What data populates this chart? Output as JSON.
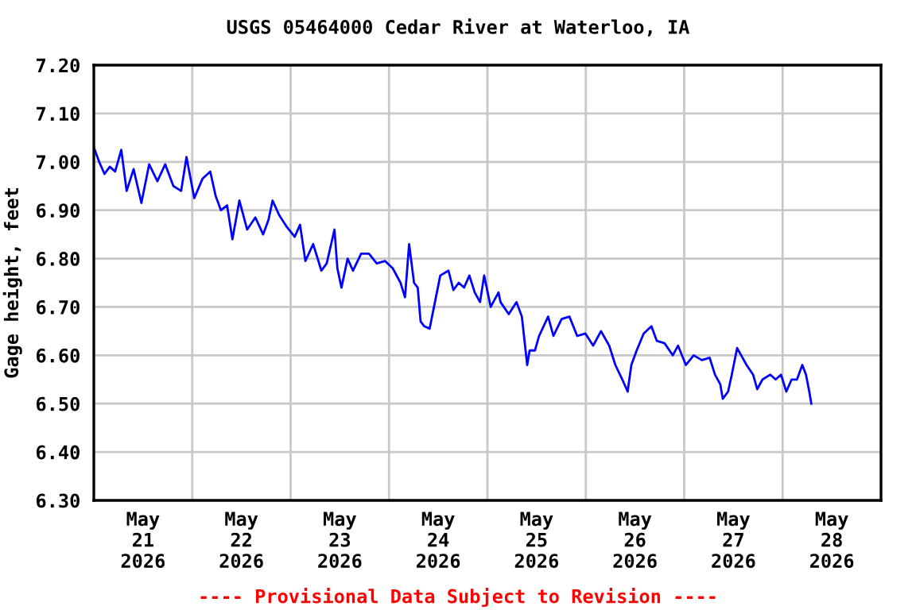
{
  "chart_data": {
    "type": "line",
    "title": "USGS 05464000 Cedar River at Waterloo, IA",
    "ylabel": "Gage height, feet",
    "annotations": [
      "---- Provisional Data Subject to Revision ----"
    ],
    "series": [
      {
        "color": "#0000ff",
        "x": [
          "2026-05-21T00:00",
          "2026-05-21T01:18",
          "2026-05-21T02:36",
          "2026-05-21T03:54",
          "2026-05-21T05:12",
          "2026-05-21T06:42",
          "2026-05-21T08:00",
          "2026-05-21T09:42",
          "2026-05-21T11:36",
          "2026-05-21T13:30",
          "2026-05-21T15:30",
          "2026-05-21T17:24",
          "2026-05-21T19:24",
          "2026-05-21T21:18",
          "2026-05-21T22:36",
          "2026-05-22T00:30",
          "2026-05-22T02:30",
          "2026-05-22T04:24",
          "2026-05-22T05:42",
          "2026-05-22T07:00",
          "2026-05-22T08:30",
          "2026-05-22T09:48",
          "2026-05-22T11:30",
          "2026-05-22T13:24",
          "2026-05-22T15:24",
          "2026-05-22T17:18",
          "2026-05-22T18:36",
          "2026-05-22T19:36",
          "2026-05-22T21:12",
          "2026-05-22T23:06",
          "2026-05-23T01:00",
          "2026-05-23T02:18",
          "2026-05-23T03:36",
          "2026-05-23T05:30",
          "2026-05-23T07:30",
          "2026-05-23T08:48",
          "2026-05-23T10:42",
          "2026-05-23T11:24",
          "2026-05-23T12:24",
          "2026-05-23T13:54",
          "2026-05-23T15:12",
          "2026-05-23T17:12",
          "2026-05-23T19:06",
          "2026-05-23T21:00",
          "2026-05-23T23:00",
          "2026-05-24T00:54",
          "2026-05-24T02:48",
          "2026-05-24T03:54",
          "2026-05-24T04:54",
          "2026-05-24T06:06",
          "2026-05-24T07:00",
          "2026-05-24T07:42",
          "2026-05-24T08:36",
          "2026-05-24T09:54",
          "2026-05-24T11:12",
          "2026-05-24T12:30",
          "2026-05-24T14:30",
          "2026-05-24T15:42",
          "2026-05-24T17:00",
          "2026-05-24T18:18",
          "2026-05-24T19:36",
          "2026-05-24T20:54",
          "2026-05-24T22:12",
          "2026-05-24T23:12",
          "2026-05-25T00:48",
          "2026-05-25T02:42",
          "2026-05-25T03:12",
          "2026-05-25T05:12",
          "2026-05-25T07:06",
          "2026-05-25T08:24",
          "2026-05-25T09:42",
          "2026-05-25T10:18",
          "2026-05-25T11:36",
          "2026-05-25T12:36",
          "2026-05-25T14:48",
          "2026-05-25T16:06",
          "2026-05-25T18:06",
          "2026-05-25T20:00",
          "2026-05-25T21:54",
          "2026-05-25T23:54",
          "2026-05-26T01:48",
          "2026-05-26T03:42",
          "2026-05-26T05:42",
          "2026-05-26T07:12",
          "2026-05-26T08:54",
          "2026-05-26T10:12",
          "2026-05-26T11:06",
          "2026-05-26T12:24",
          "2026-05-26T14:06",
          "2026-05-26T16:00",
          "2026-05-26T17:18",
          "2026-05-26T19:12",
          "2026-05-26T21:12",
          "2026-05-26T22:30",
          "2026-05-27T00:24",
          "2026-05-27T02:18",
          "2026-05-27T04:18",
          "2026-05-27T06:12",
          "2026-05-27T07:30",
          "2026-05-27T08:48",
          "2026-05-27T09:24",
          "2026-05-27T10:42",
          "2026-05-27T11:36",
          "2026-05-27T12:54",
          "2026-05-27T13:54",
          "2026-05-27T15:12",
          "2026-05-27T16:48",
          "2026-05-27T17:48",
          "2026-05-27T19:06",
          "2026-05-27T21:00",
          "2026-05-27T22:18",
          "2026-05-27T23:36",
          "2026-05-28T00:54",
          "2026-05-28T02:12",
          "2026-05-28T03:30",
          "2026-05-28T04:48",
          "2026-05-28T05:42",
          "2026-05-28T06:30",
          "2026-05-28T07:00"
        ],
        "values": [
          7.03,
          7.0,
          6.975,
          6.99,
          6.98,
          7.025,
          6.94,
          6.985,
          6.915,
          6.995,
          6.96,
          6.995,
          6.95,
          6.94,
          7.01,
          6.925,
          6.965,
          6.98,
          6.93,
          6.9,
          6.91,
          6.84,
          6.92,
          6.86,
          6.885,
          6.85,
          6.88,
          6.92,
          6.89,
          6.865,
          6.845,
          6.87,
          6.795,
          6.83,
          6.775,
          6.79,
          6.86,
          6.78,
          6.74,
          6.8,
          6.775,
          6.81,
          6.81,
          6.79,
          6.795,
          6.78,
          6.75,
          6.72,
          6.83,
          6.75,
          6.74,
          6.67,
          6.66,
          6.655,
          6.71,
          6.765,
          6.775,
          6.735,
          6.75,
          6.74,
          6.765,
          6.73,
          6.71,
          6.765,
          6.7,
          6.73,
          6.71,
          6.685,
          6.71,
          6.68,
          6.58,
          6.61,
          6.61,
          6.64,
          6.68,
          6.64,
          6.675,
          6.68,
          6.64,
          6.645,
          6.62,
          6.65,
          6.62,
          6.58,
          6.55,
          6.525,
          6.58,
          6.61,
          6.645,
          6.66,
          6.63,
          6.625,
          6.6,
          6.62,
          6.58,
          6.6,
          6.59,
          6.595,
          6.56,
          6.54,
          6.51,
          6.525,
          6.56,
          6.615,
          6.6,
          6.58,
          6.56,
          6.53,
          6.55,
          6.56,
          6.55,
          6.56,
          6.525,
          6.55,
          6.55,
          6.58,
          6.56,
          6.525,
          6.5
        ]
      }
    ],
    "xlim": [
      "2026-05-21T00:00",
      "2026-05-29T00:00"
    ],
    "xticks": [
      {
        "value": "2026-05-21T00:00",
        "label": null
      },
      {
        "value": "2026-05-21T12:00",
        "label": "May\n21\n2026"
      },
      {
        "value": "2026-05-22T00:00",
        "label": null
      },
      {
        "value": "2026-05-22T12:00",
        "label": "May\n22\n2026"
      },
      {
        "value": "2026-05-23T00:00",
        "label": null
      },
      {
        "value": "2026-05-23T12:00",
        "label": "May\n23\n2026"
      },
      {
        "value": "2026-05-24T00:00",
        "label": null
      },
      {
        "value": "2026-05-24T12:00",
        "label": "May\n24\n2026"
      },
      {
        "value": "2026-05-25T00:00",
        "label": null
      },
      {
        "value": "2026-05-25T12:00",
        "label": "May\n25\n2026"
      },
      {
        "value": "2026-05-26T00:00",
        "label": null
      },
      {
        "value": "2026-05-26T12:00",
        "label": "May\n26\n2026"
      },
      {
        "value": "2026-05-27T00:00",
        "label": null
      },
      {
        "value": "2026-05-27T12:00",
        "label": "May\n27\n2026"
      },
      {
        "value": "2026-05-28T00:00",
        "label": null
      },
      {
        "value": "2026-05-28T12:00",
        "label": "May\n28\n2026"
      },
      {
        "value": "2026-05-29T00:00",
        "label": null
      }
    ],
    "ylim": [
      6.3,
      7.2
    ],
    "yticks": [
      {
        "value": 6.3,
        "label": "6.30"
      },
      {
        "value": 6.4,
        "label": "6.40"
      },
      {
        "value": 6.5,
        "label": "6.50"
      },
      {
        "value": 6.6,
        "label": "6.60"
      },
      {
        "value": 6.7,
        "label": "6.70"
      },
      {
        "value": 6.8,
        "label": "6.80"
      },
      {
        "value": 6.9,
        "label": "6.90"
      },
      {
        "value": 7.0,
        "label": "7.00"
      },
      {
        "value": 7.1,
        "label": "7.10"
      },
      {
        "value": 7.2,
        "label": "7.20"
      }
    ],
    "grid": true
  }
}
